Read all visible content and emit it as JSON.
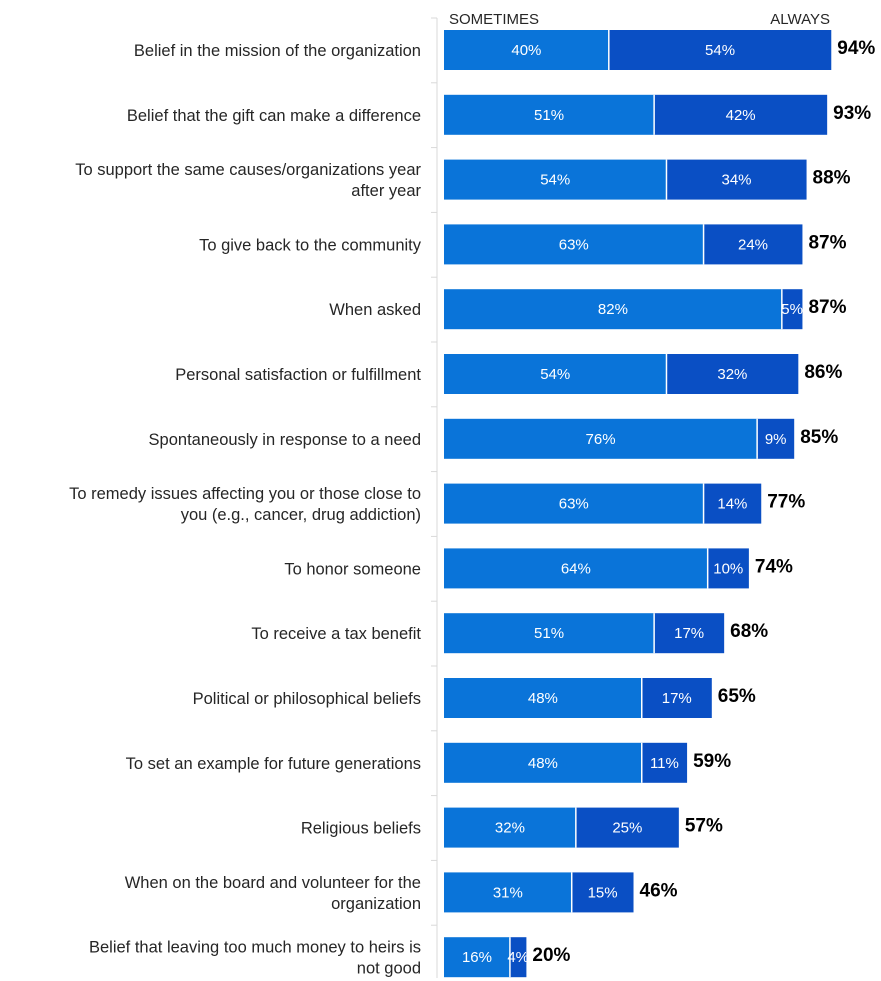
{
  "chart_data": {
    "type": "bar",
    "orientation": "horizontal",
    "stacked": true,
    "legend": [
      "SOMETIMES",
      "ALWAYS"
    ],
    "legend_placement": "top",
    "grid": false,
    "xlim": [
      0,
      100
    ],
    "colors": {
      "sometimes": "#0a74d9",
      "always": "#0a4fc4"
    },
    "categories": [
      [
        "Belief in the mission of the organization"
      ],
      [
        "Belief that the gift can make a difference"
      ],
      [
        "To support the same causes/organizations year",
        "after year"
      ],
      [
        "To give back to the community"
      ],
      [
        "When asked"
      ],
      [
        "Personal satisfaction or fulfillment"
      ],
      [
        "Spontaneously in response to a need"
      ],
      [
        "To remedy issues affecting you or those close to",
        "you (e.g., cancer, drug addiction)"
      ],
      [
        "To honor someone"
      ],
      [
        "To receive a tax benefit"
      ],
      [
        "Political or philosophical beliefs"
      ],
      [
        "To set an example for future generations"
      ],
      [
        "Religious beliefs"
      ],
      [
        "When on the board and volunteer for the",
        "organization"
      ],
      [
        "Belief that leaving too  much money to heirs is",
        "not good"
      ]
    ],
    "series": [
      {
        "name": "SOMETIMES",
        "values": [
          40,
          51,
          54,
          63,
          82,
          54,
          76,
          63,
          64,
          51,
          48,
          48,
          32,
          31,
          16
        ]
      },
      {
        "name": "ALWAYS",
        "values": [
          54,
          42,
          34,
          24,
          5,
          32,
          9,
          14,
          10,
          17,
          17,
          11,
          25,
          15,
          4
        ]
      }
    ],
    "totals": [
      94,
      93,
      88,
      87,
      87,
      86,
      85,
      77,
      74,
      68,
      65,
      59,
      57,
      46,
      20
    ]
  }
}
